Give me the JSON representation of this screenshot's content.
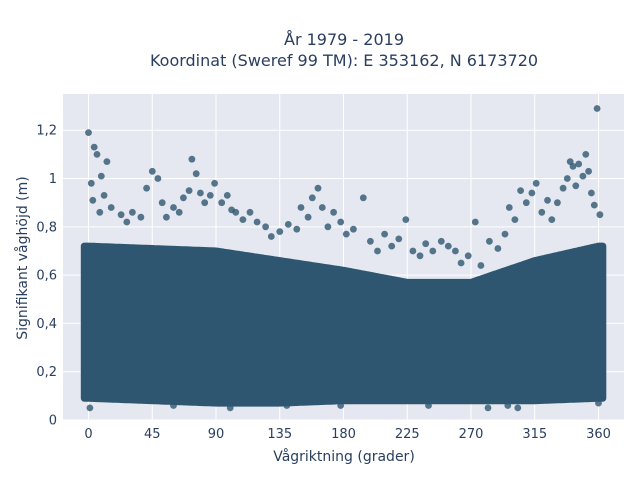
{
  "chart_data": {
    "type": "scatter",
    "title_line1": "År 1979 - 2019",
    "title_line2": "Koordinat (Sweref 99 TM): E 353162, N 6173720",
    "xlabel": "Vågriktning (grader)",
    "ylabel": "Signifikant våghöjd (m)",
    "xlim": [
      -18,
      378
    ],
    "ylim": [
      0,
      1.35
    ],
    "x_ticks": [
      0,
      45,
      90,
      135,
      180,
      225,
      270,
      315,
      360
    ],
    "x_tick_labels": [
      "0",
      "45",
      "90",
      "135",
      "180",
      "225",
      "270",
      "315",
      "360"
    ],
    "y_ticks": [
      0,
      0.2,
      0.4,
      0.6,
      0.8,
      1.0,
      1.2
    ],
    "y_tick_labels": [
      "0",
      "0,2",
      "0,4",
      "0,6",
      "0,8",
      "1",
      "1,2"
    ],
    "grid": true,
    "marker_color": "#2f5670",
    "plot_bg": "#e5e8f0",
    "dense_band": {
      "x_range": [
        -3,
        363
      ],
      "y_lower": [
        [
          0,
          0.09
        ],
        [
          45,
          0.08
        ],
        [
          90,
          0.07
        ],
        [
          135,
          0.07
        ],
        [
          180,
          0.08
        ],
        [
          225,
          0.08
        ],
        [
          270,
          0.08
        ],
        [
          315,
          0.08
        ],
        [
          360,
          0.09
        ]
      ],
      "y_upper": [
        [
          0,
          0.72
        ],
        [
          45,
          0.71
        ],
        [
          90,
          0.7
        ],
        [
          135,
          0.66
        ],
        [
          180,
          0.62
        ],
        [
          225,
          0.57
        ],
        [
          270,
          0.57
        ],
        [
          315,
          0.66
        ],
        [
          360,
          0.72
        ]
      ]
    },
    "points": [
      [
        0,
        1.19
      ],
      [
        2,
        0.98
      ],
      [
        4,
        1.13
      ],
      [
        6,
        1.1
      ],
      [
        9,
        1.01
      ],
      [
        11,
        0.93
      ],
      [
        13,
        1.07
      ],
      [
        3,
        0.91
      ],
      [
        8,
        0.86
      ],
      [
        16,
        0.88
      ],
      [
        23,
        0.85
      ],
      [
        27,
        0.82
      ],
      [
        31,
        0.86
      ],
      [
        37,
        0.84
      ],
      [
        41,
        0.96
      ],
      [
        45,
        1.03
      ],
      [
        49,
        1.0
      ],
      [
        52,
        0.9
      ],
      [
        55,
        0.84
      ],
      [
        60,
        0.88
      ],
      [
        64,
        0.86
      ],
      [
        67,
        0.92
      ],
      [
        71,
        0.95
      ],
      [
        73,
        1.08
      ],
      [
        76,
        1.02
      ],
      [
        79,
        0.94
      ],
      [
        82,
        0.9
      ],
      [
        86,
        0.93
      ],
      [
        89,
        0.98
      ],
      [
        94,
        0.9
      ],
      [
        98,
        0.93
      ],
      [
        101,
        0.87
      ],
      [
        104,
        0.86
      ],
      [
        109,
        0.83
      ],
      [
        114,
        0.86
      ],
      [
        119,
        0.82
      ],
      [
        125,
        0.8
      ],
      [
        129,
        0.76
      ],
      [
        135,
        0.78
      ],
      [
        141,
        0.81
      ],
      [
        147,
        0.79
      ],
      [
        150,
        0.88
      ],
      [
        155,
        0.84
      ],
      [
        158,
        0.92
      ],
      [
        162,
        0.96
      ],
      [
        165,
        0.88
      ],
      [
        169,
        0.8
      ],
      [
        173,
        0.86
      ],
      [
        178,
        0.82
      ],
      [
        182,
        0.77
      ],
      [
        187,
        0.79
      ],
      [
        194,
        0.92
      ],
      [
        199,
        0.74
      ],
      [
        204,
        0.7
      ],
      [
        209,
        0.77
      ],
      [
        214,
        0.72
      ],
      [
        219,
        0.75
      ],
      [
        224,
        0.83
      ],
      [
        229,
        0.7
      ],
      [
        234,
        0.68
      ],
      [
        238,
        0.73
      ],
      [
        243,
        0.7
      ],
      [
        249,
        0.74
      ],
      [
        254,
        0.72
      ],
      [
        259,
        0.7
      ],
      [
        263,
        0.65
      ],
      [
        268,
        0.68
      ],
      [
        273,
        0.82
      ],
      [
        277,
        0.64
      ],
      [
        283,
        0.74
      ],
      [
        289,
        0.71
      ],
      [
        294,
        0.77
      ],
      [
        297,
        0.88
      ],
      [
        301,
        0.83
      ],
      [
        305,
        0.95
      ],
      [
        309,
        0.9
      ],
      [
        313,
        0.94
      ],
      [
        316,
        0.98
      ],
      [
        320,
        0.86
      ],
      [
        324,
        0.91
      ],
      [
        327,
        0.83
      ],
      [
        331,
        0.9
      ],
      [
        335,
        0.96
      ],
      [
        338,
        1.0
      ],
      [
        340,
        1.07
      ],
      [
        342,
        1.05
      ],
      [
        344,
        0.97
      ],
      [
        346,
        1.06
      ],
      [
        349,
        1.01
      ],
      [
        351,
        1.1
      ],
      [
        353,
        1.03
      ],
      [
        355,
        0.94
      ],
      [
        357,
        0.89
      ],
      [
        359,
        1.29
      ],
      [
        361,
        0.85
      ],
      [
        1,
        0.05
      ],
      [
        100,
        0.05
      ],
      [
        178,
        0.06
      ],
      [
        282,
        0.05
      ],
      [
        296,
        0.06
      ],
      [
        303,
        0.05
      ],
      [
        360,
        0.07
      ],
      [
        60,
        0.06
      ],
      [
        140,
        0.06
      ],
      [
        240,
        0.06
      ]
    ]
  }
}
